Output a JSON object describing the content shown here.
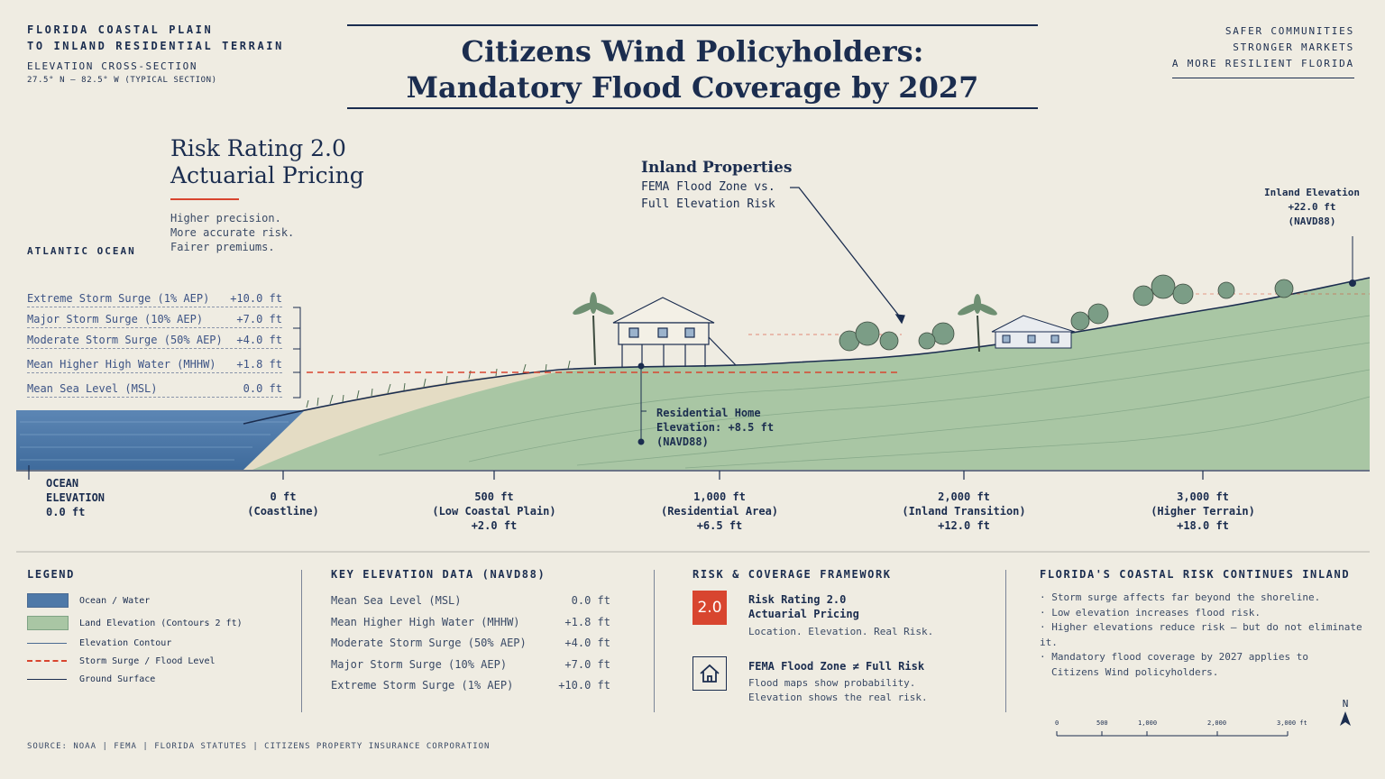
{
  "header_left": {
    "line1": "FLORIDA COASTAL PLAIN",
    "line2": "TO INLAND RESIDENTIAL TERRAIN",
    "line3": "ELEVATION CROSS-SECTION",
    "line4": "27.5° N  –  82.5° W (TYPICAL SECTION)"
  },
  "title": {
    "line1": "Citizens Wind Policyholders:",
    "line2": "Mandatory Flood Coverage by 2027"
  },
  "header_right": [
    "SAFER COMMUNITIES",
    "STRONGER MARKETS",
    "A MORE RESILIENT FLORIDA"
  ],
  "risk_rating": {
    "title1": "Risk Rating 2.0",
    "title2": "Actuarial Pricing",
    "body": [
      "Higher precision.",
      "More accurate risk.",
      "Fairer premiums."
    ]
  },
  "ocean_label": "ATLANTIC OCEAN",
  "surge_levels": [
    {
      "label": "Extreme Storm Surge (1% AEP)",
      "value": "+10.0 ft"
    },
    {
      "label": "Major Storm Surge (10% AEP)",
      "value": "+7.0 ft"
    },
    {
      "label": "Moderate Storm Surge (50% AEP)",
      "value": "+4.0 ft"
    },
    {
      "label": "Mean Higher High Water (MHHW)",
      "value": "+1.8 ft"
    },
    {
      "label": "Mean Sea Level (MSL)",
      "value": "0.0 ft"
    }
  ],
  "inland_callout": {
    "title": "Inland Properties",
    "line1": "FEMA Flood Zone vs.",
    "line2": "Full Elevation Risk"
  },
  "inland_elevation": {
    "line1": "Inland Elevation",
    "line2": "+22.0 ft",
    "line3": "(NAVD88)"
  },
  "home_callout": {
    "line1": "Residential Home",
    "line2": "Elevation: +8.5 ft",
    "line3": "(NAVD88)"
  },
  "axis_labels": [
    {
      "l1": "OCEAN",
      "l2": "ELEVATION",
      "l3": "0.0 ft"
    },
    {
      "l1": "0 ft",
      "l2": "(Coastline)",
      "l3": ""
    },
    {
      "l1": "500 ft",
      "l2": "(Low Coastal Plain)",
      "l3": "+2.0 ft"
    },
    {
      "l1": "1,000 ft",
      "l2": "(Residential Area)",
      "l3": "+6.5 ft"
    },
    {
      "l1": "2,000 ft",
      "l2": "(Inland Transition)",
      "l3": "+12.0 ft"
    },
    {
      "l1": "3,000 ft",
      "l2": "(Higher Terrain)",
      "l3": "+18.0 ft"
    }
  ],
  "legend": {
    "heading": "LEGEND",
    "items": [
      "Ocean / Water",
      "Land Elevation (Contours 2 ft)",
      "Elevation Contour",
      "Storm Surge / Flood Level",
      "Ground Surface"
    ]
  },
  "key_data": {
    "heading": "KEY ELEVATION DATA (NAVD88)",
    "rows": [
      {
        "label": "Mean Sea Level (MSL)",
        "value": "0.0 ft"
      },
      {
        "label": "Mean Higher High Water (MHHW)",
        "value": "+1.8 ft"
      },
      {
        "label": "Moderate Storm Surge (50% AEP)",
        "value": "+4.0 ft"
      },
      {
        "label": "Major Storm Surge (10% AEP)",
        "value": "+7.0 ft"
      },
      {
        "label": "Extreme Storm Surge (1% AEP)",
        "value": "+10.0 ft"
      }
    ]
  },
  "framework": {
    "heading": "RISK & COVERAGE FRAMEWORK",
    "badge": "2.0",
    "item1_title1": "Risk Rating 2.0",
    "item1_title2": "Actuarial Pricing",
    "item1_body": "Location. Elevation. Real Risk.",
    "item2_title": "FEMA Flood Zone ≠ Full Risk",
    "item2_body1": "Flood maps show probability.",
    "item2_body2": "Elevation shows the real risk."
  },
  "inland_risk": {
    "heading": "FLORIDA'S COASTAL RISK CONTINUES INLAND",
    "bullets": [
      "Storm surge affects far beyond the shoreline.",
      "Low elevation increases flood risk.",
      "Higher elevations reduce risk — but do not eliminate it.",
      "Mandatory flood coverage by 2027 applies to",
      "Citizens Wind policyholders."
    ]
  },
  "scale_bar": {
    "north": "N",
    "ticks": [
      "0",
      "500",
      "1,000",
      "2,000",
      "3,000 ft"
    ]
  },
  "footer": "SOURCE: NOAA  |  FEMA  |  FLORIDA STATUTES  |  CITIZENS PROPERTY INSURANCE CORPORATION",
  "colors": {
    "navy": "#1b2d4f",
    "water": "#4f79a8",
    "land": "#a9c6a4",
    "accent_red": "#d8452f",
    "background": "#efece2"
  }
}
